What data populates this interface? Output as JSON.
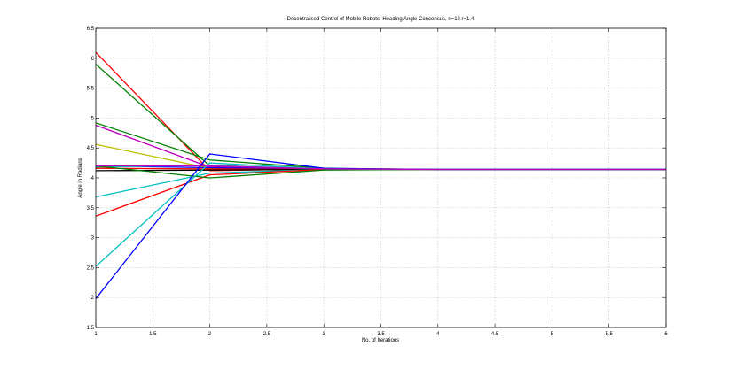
{
  "chart_data": {
    "type": "line",
    "title": "Decentralised Control of Mobile Robots: Heading Angle Concensus, n=12 r=1.4",
    "xlabel": "No. of Iterations",
    "ylabel": "Angle in Radians",
    "xlim": [
      1,
      6
    ],
    "ylim": [
      1.5,
      6.5
    ],
    "xticks": [
      1,
      1.5,
      2,
      2.5,
      3,
      3.5,
      4,
      4.5,
      5,
      5.5,
      6
    ],
    "yticks": [
      1.5,
      2,
      2.5,
      3,
      3.5,
      4,
      4.5,
      5,
      5.5,
      6,
      6.5
    ],
    "xtick_labels": [
      "1",
      "1.5",
      "2",
      "2.5",
      "3",
      "3.5",
      "4",
      "4.5",
      "5",
      "5.5",
      "6"
    ],
    "ytick_labels": [
      "1.5",
      "2",
      "2.5",
      "3",
      "3.5",
      "4",
      "4.5",
      "5",
      "5.5",
      "6",
      "6.5"
    ],
    "grid": true,
    "x": [
      1,
      2,
      3,
      4,
      5,
      6
    ],
    "series": [
      {
        "color": "#ff0000",
        "values": [
          6.1,
          4.12,
          4.15,
          4.14,
          4.14,
          4.14
        ]
      },
      {
        "color": "#007f00",
        "values": [
          5.9,
          4.2,
          4.15,
          4.14,
          4.14,
          4.14
        ]
      },
      {
        "color": "#007f00",
        "values": [
          4.92,
          4.3,
          4.16,
          4.14,
          4.14,
          4.14
        ]
      },
      {
        "color": "#bf00bf",
        "values": [
          4.88,
          4.18,
          4.15,
          4.14,
          4.14,
          4.14
        ]
      },
      {
        "color": "#bfbf00",
        "values": [
          4.56,
          4.16,
          4.14,
          4.14,
          4.14,
          4.14
        ]
      },
      {
        "color": "#0000ff",
        "values": [
          4.2,
          4.17,
          4.14,
          4.14,
          4.14,
          4.14
        ]
      },
      {
        "color": "#00bfbf",
        "values": [
          4.18,
          4.21,
          4.15,
          4.14,
          4.14,
          4.14
        ]
      },
      {
        "color": "#ff0000",
        "values": [
          4.16,
          4.15,
          4.14,
          4.14,
          4.14,
          4.14
        ]
      },
      {
        "color": "#000000",
        "values": [
          4.12,
          4.13,
          4.14,
          4.14,
          4.14,
          4.14
        ]
      },
      {
        "color": "#00bfbf",
        "values": [
          3.68,
          4.08,
          4.14,
          4.14,
          4.14,
          4.14
        ]
      },
      {
        "color": "#ff0000",
        "values": [
          3.36,
          4.05,
          4.14,
          4.14,
          4.14,
          4.14
        ]
      },
      {
        "color": "#007f00",
        "values": [
          4.2,
          4.0,
          4.13,
          4.14,
          4.14,
          4.14
        ]
      },
      {
        "color": "#00bfbf",
        "values": [
          2.52,
          4.25,
          4.15,
          4.14,
          4.14,
          4.14
        ]
      },
      {
        "color": "#0000ff",
        "values": [
          1.98,
          4.4,
          4.16,
          4.14,
          4.14,
          4.14
        ]
      },
      {
        "color": "#bf00bf",
        "values": [
          4.2,
          4.2,
          4.15,
          4.14,
          4.14,
          4.14
        ]
      }
    ]
  }
}
